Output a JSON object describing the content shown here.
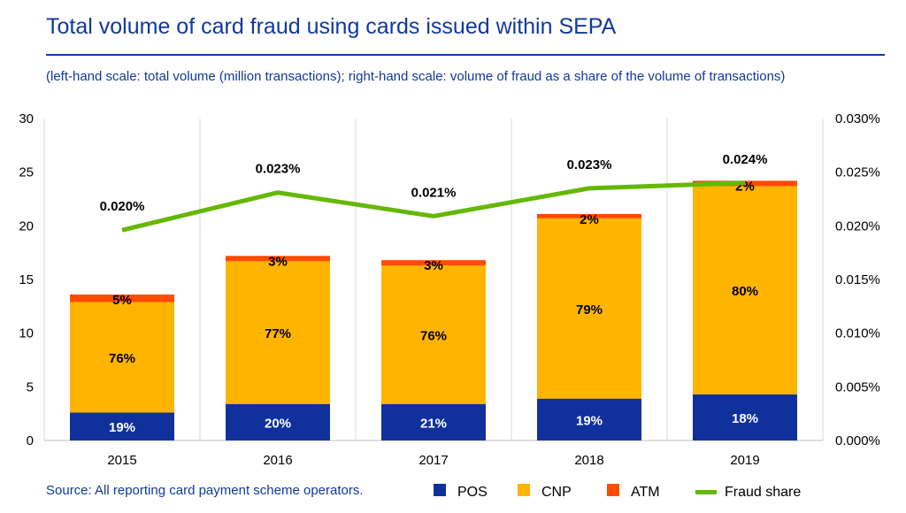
{
  "title": "Total volume of card fraud using cards issued within SEPA",
  "subtitle": "(left-hand scale: total volume (million transactions); right-hand scale: volume of fraud as a share of the volume of transactions)",
  "source": "Source: All reporting card payment scheme operators.",
  "chart_data": {
    "type": "bar",
    "stacked": true,
    "categories": [
      "2015",
      "2016",
      "2017",
      "2018",
      "2019"
    ],
    "ylim": [
      0,
      30
    ],
    "yticks": [
      "0",
      "5",
      "10",
      "15",
      "20",
      "25",
      "30"
    ],
    "y2lim": [
      0,
      0.03
    ],
    "y2ticks": [
      "0.000%",
      "0.005%",
      "0.010%",
      "0.015%",
      "0.020%",
      "0.025%",
      "0.030%"
    ],
    "grid": "vertical",
    "legend_position": "bottom",
    "series": [
      {
        "name": "POS",
        "color": "#10319c",
        "values": [
          2.6,
          3.4,
          3.4,
          3.9,
          4.3
        ],
        "labels": [
          "19%",
          "20%",
          "21%",
          "19%",
          "18%"
        ]
      },
      {
        "name": "CNP",
        "color": "#ffb400",
        "values": [
          10.3,
          13.3,
          12.9,
          16.8,
          19.4
        ],
        "labels": [
          "76%",
          "77%",
          "76%",
          "79%",
          "80%"
        ]
      },
      {
        "name": "ATM",
        "color": "#ff4b00",
        "values": [
          0.7,
          0.5,
          0.5,
          0.4,
          0.5
        ],
        "labels": [
          "5%",
          "3%",
          "3%",
          "2%",
          "2%"
        ]
      },
      {
        "name": "Fraud share",
        "type": "line",
        "axis": "right",
        "color": "#65b800",
        "values": [
          0.0196,
          0.0231,
          0.0209,
          0.0235,
          0.024
        ],
        "labels": [
          "0.020%",
          "0.023%",
          "0.021%",
          "0.023%",
          "0.024%"
        ]
      }
    ]
  }
}
